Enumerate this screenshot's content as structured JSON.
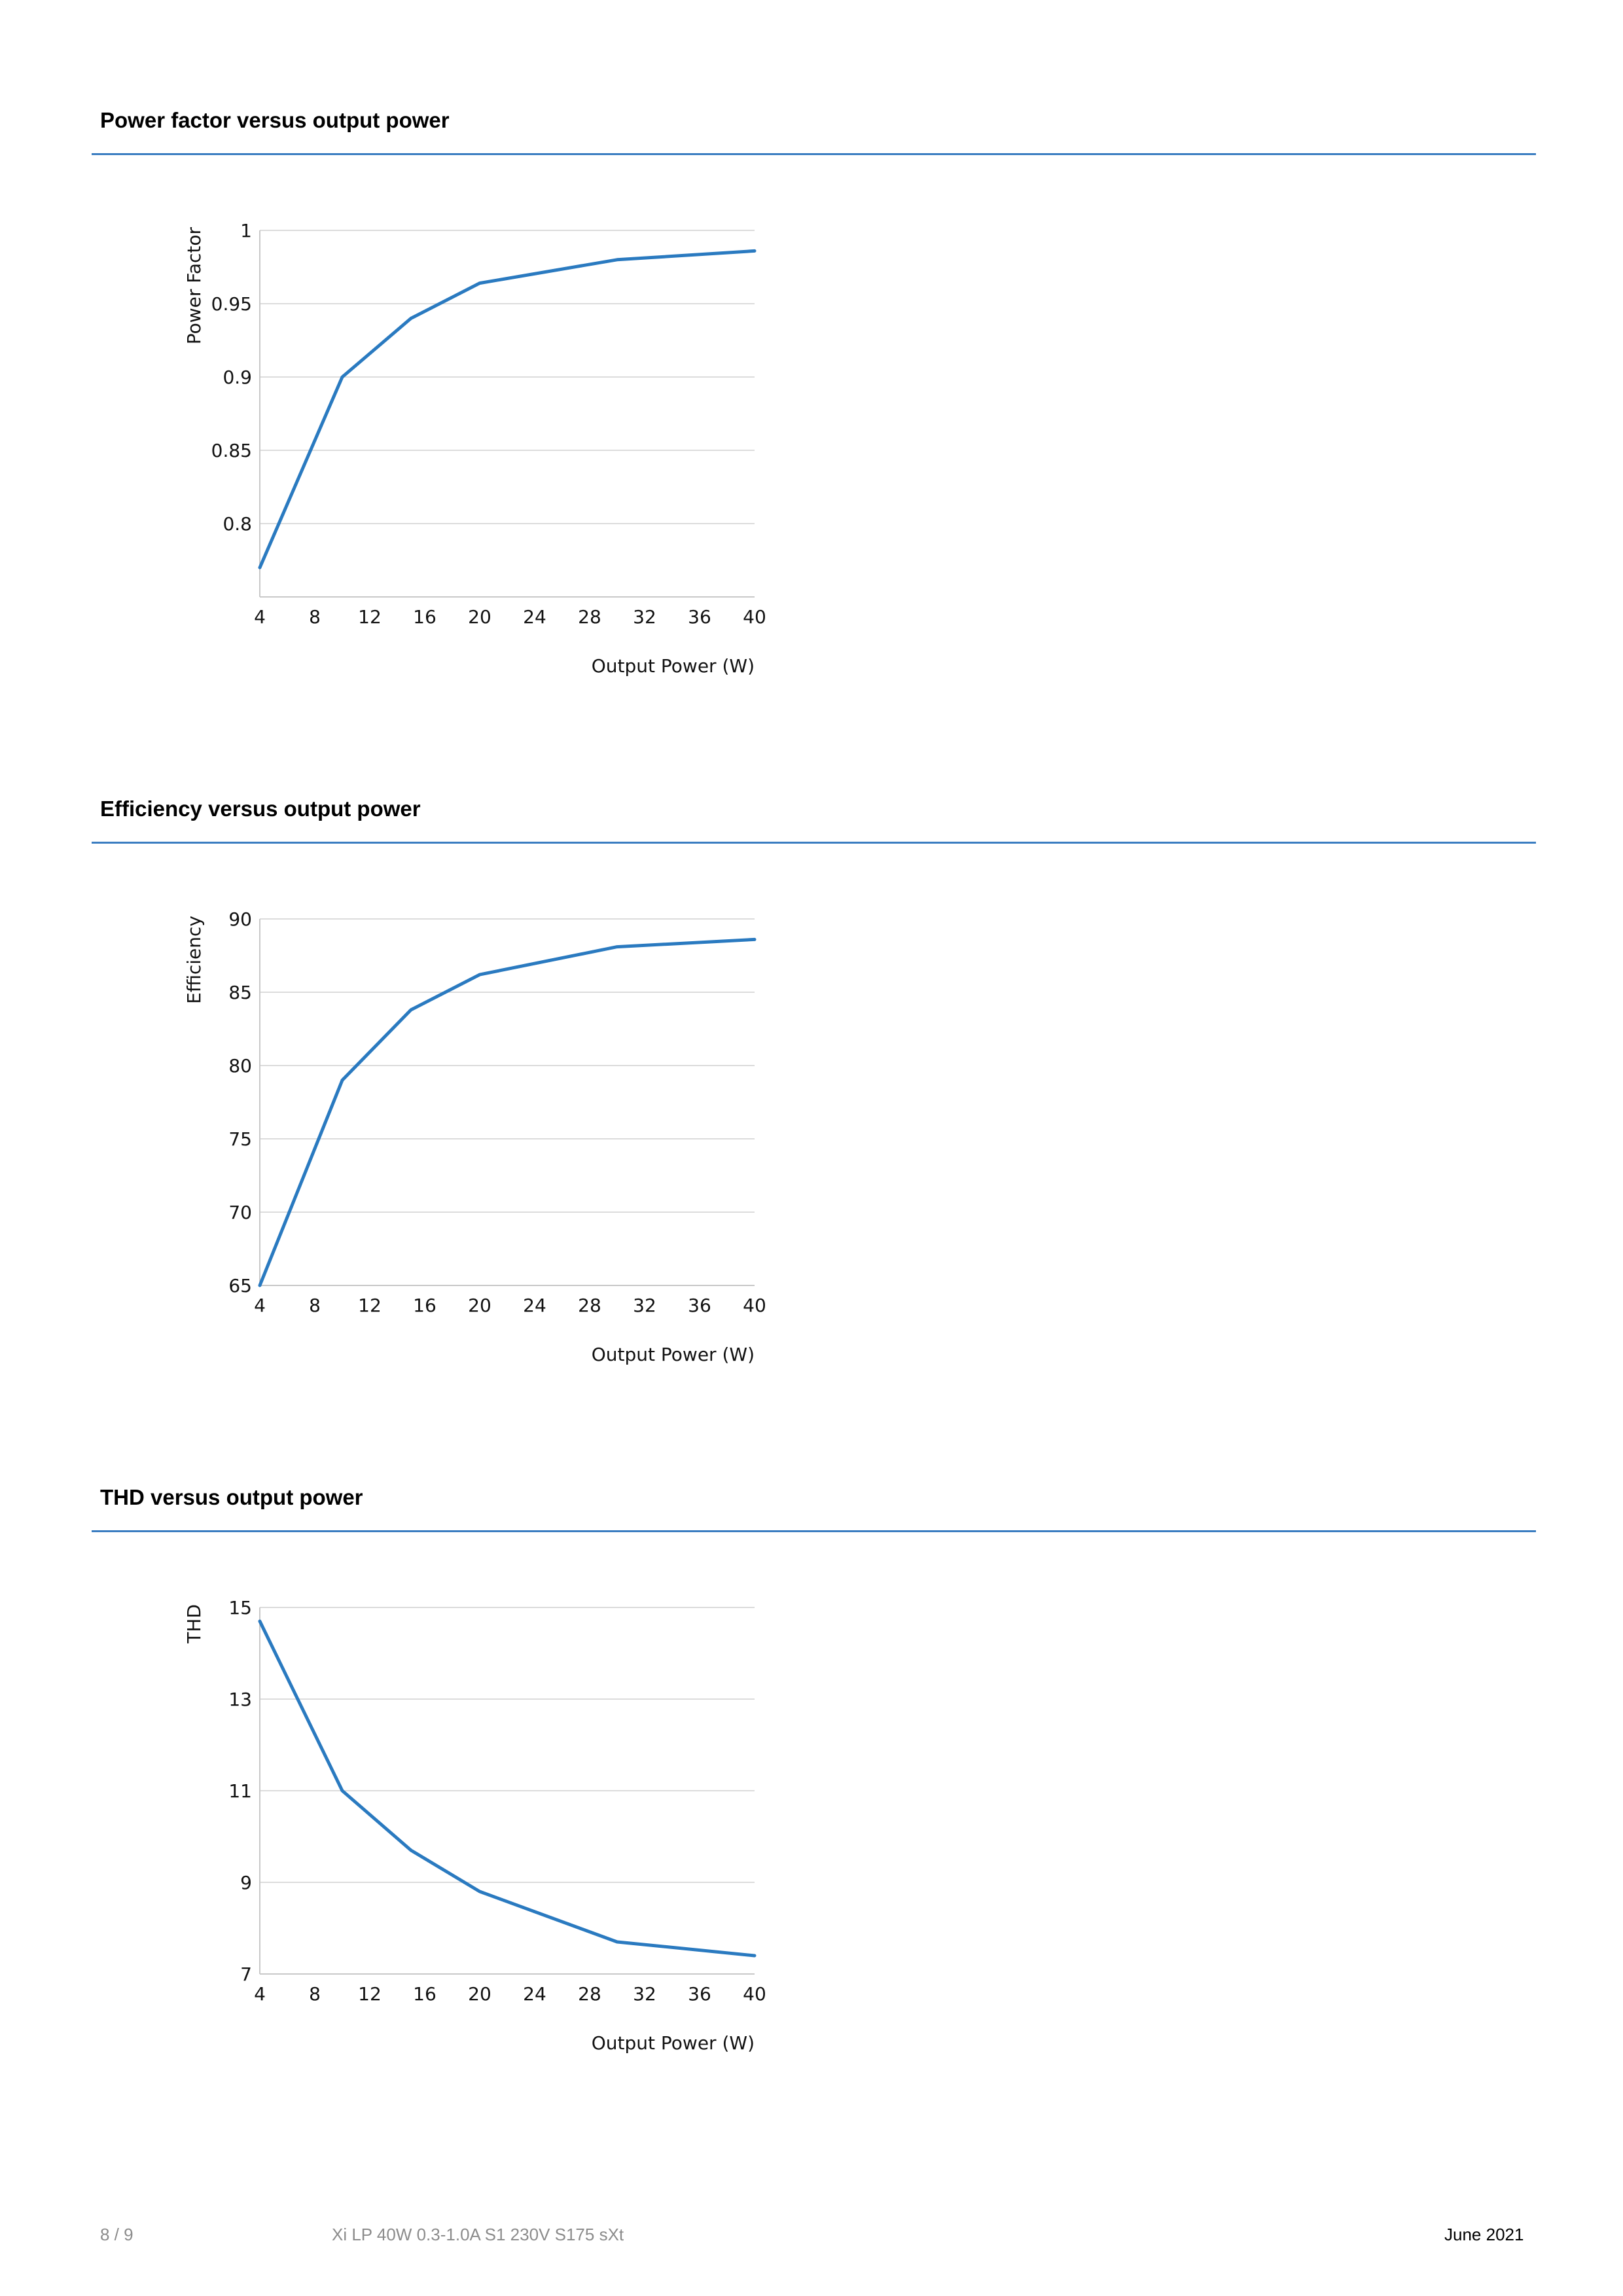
{
  "colors": {
    "accent": "#3a7dc1",
    "series": "#2a7ac0"
  },
  "sections": [
    {
      "title": "Power factor versus output power",
      "chart": {
        "type": "line",
        "xlabel": "Output Power (W)",
        "ylabel": "Power Factor",
        "xlim": [
          4,
          40
        ],
        "ylim": [
          0.75,
          1
        ],
        "xticks": [
          4,
          8,
          12,
          16,
          20,
          24,
          28,
          32,
          36,
          40
        ],
        "yticks": [
          1,
          0.95,
          0.9,
          0.85,
          0.8
        ],
        "ytick_labels": [
          "1",
          "0.95",
          "0.9",
          "0.85",
          "0.8"
        ],
        "grid": true,
        "x": [
          4,
          10,
          15,
          20,
          30,
          40
        ],
        "y": [
          0.77,
          0.9,
          0.94,
          0.964,
          0.98,
          0.986
        ]
      }
    },
    {
      "title": "Efficiency versus output power",
      "chart": {
        "type": "line",
        "xlabel": "Output Power (W)",
        "ylabel": "Efficiency",
        "xlim": [
          4,
          40
        ],
        "ylim": [
          65,
          90
        ],
        "xticks": [
          4,
          8,
          12,
          16,
          20,
          24,
          28,
          32,
          36,
          40
        ],
        "yticks": [
          90,
          85,
          80,
          75,
          70,
          65
        ],
        "ytick_labels": [
          "90",
          "85",
          "80",
          "75",
          "70",
          "65"
        ],
        "grid": true,
        "x": [
          4,
          10,
          15,
          20,
          30,
          40
        ],
        "y": [
          65,
          79,
          83.8,
          86.2,
          88.1,
          88.6
        ]
      }
    },
    {
      "title": "THD versus output power",
      "chart": {
        "type": "line",
        "xlabel": "Output Power (W)",
        "ylabel": "THD",
        "xlim": [
          4,
          40
        ],
        "ylim": [
          7,
          15
        ],
        "xticks": [
          4,
          8,
          12,
          16,
          20,
          24,
          28,
          32,
          36,
          40
        ],
        "yticks": [
          15,
          13,
          11,
          9,
          7
        ],
        "ytick_labels": [
          "15",
          "13",
          "11",
          "9",
          "7"
        ],
        "grid": true,
        "x": [
          4,
          10,
          15,
          20,
          30,
          40
        ],
        "y": [
          14.7,
          11,
          9.7,
          8.8,
          7.7,
          7.4
        ]
      }
    }
  ],
  "chart_data": [
    {
      "type": "line",
      "title": "Power factor versus output power",
      "xlabel": "Output Power (W)",
      "ylabel": "Power Factor",
      "xlim": [
        4,
        40
      ],
      "ylim": [
        0.75,
        1
      ],
      "grid": true,
      "series": [
        {
          "x": [
            4,
            10,
            15,
            20,
            30,
            40
          ],
          "values": [
            0.77,
            0.9,
            0.94,
            0.964,
            0.98,
            0.986
          ]
        }
      ]
    },
    {
      "type": "line",
      "title": "Efficiency versus output power",
      "xlabel": "Output Power (W)",
      "ylabel": "Efficiency",
      "xlim": [
        4,
        40
      ],
      "ylim": [
        65,
        90
      ],
      "grid": true,
      "series": [
        {
          "x": [
            4,
            10,
            15,
            20,
            30,
            40
          ],
          "values": [
            65,
            79,
            83.8,
            86.2,
            88.1,
            88.6
          ]
        }
      ]
    },
    {
      "type": "line",
      "title": "THD versus output power",
      "xlabel": "Output Power (W)",
      "ylabel": "THD",
      "xlim": [
        4,
        40
      ],
      "ylim": [
        7,
        15
      ],
      "grid": true,
      "series": [
        {
          "x": [
            4,
            10,
            15,
            20,
            30,
            40
          ],
          "values": [
            14.7,
            11,
            9.7,
            8.8,
            7.7,
            7.4
          ]
        }
      ]
    }
  ],
  "footer": {
    "page": "8 / 9",
    "product": "Xi LP 40W 0.3-1.0A S1 230V S175 sXt",
    "date": "June 2021"
  }
}
